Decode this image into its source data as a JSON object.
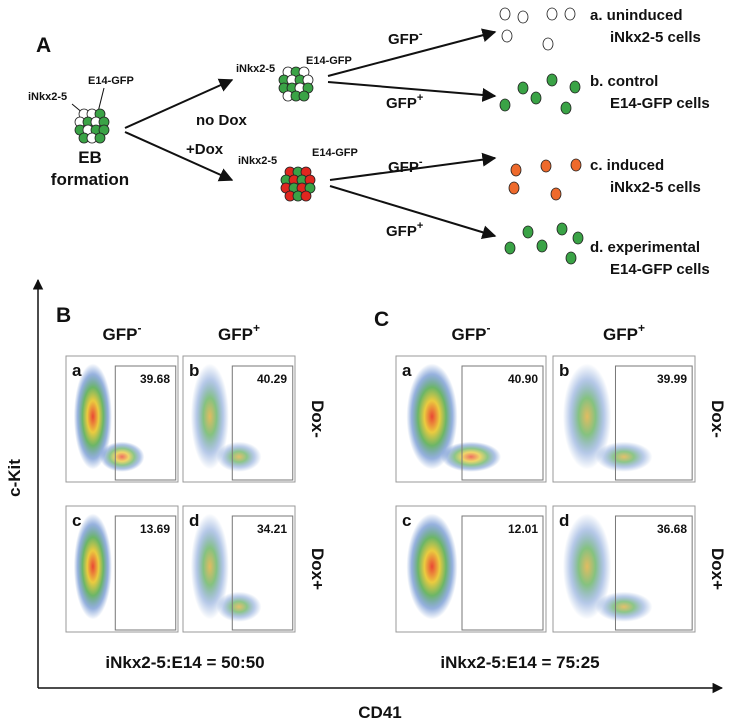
{
  "panel_a": {
    "label": "A",
    "eb": {
      "left_label": "iNkx2-5",
      "right_label": "E14-GFP",
      "caption": [
        "EB",
        "formation"
      ]
    },
    "branches": [
      {
        "condition": "no Dox",
        "left_label": "iNkx2-5",
        "right_label": "E14-GFP",
        "sorts": [
          {
            "gate": "GFP",
            "sign": "-"
          },
          {
            "gate": "GFP",
            "sign": "+"
          }
        ]
      },
      {
        "condition": "+Dox",
        "left_label": "iNkx2-5",
        "right_label": "E14-GFP",
        "sorts": [
          {
            "gate": "GFP",
            "sign": "-"
          },
          {
            "gate": "GFP",
            "sign": "+"
          }
        ]
      }
    ],
    "outcomes": [
      {
        "title": "a. uninduced",
        "subtitle": "iNkx2-5 cells"
      },
      {
        "title": "b. control",
        "subtitle": "E14-GFP cells"
      },
      {
        "title": "c. induced",
        "subtitle": "iNkx2-5 cells"
      },
      {
        "title": "d. experimental",
        "subtitle": "E14-GFP cells"
      }
    ]
  },
  "panels": [
    {
      "label": "B",
      "columns": [
        {
          "text": "GFP",
          "sign": "-"
        },
        {
          "text": "GFP",
          "sign": "+"
        }
      ],
      "rows": [
        "Dox-",
        "Dox+"
      ],
      "plots": [
        {
          "letter": "a",
          "value": "39.68"
        },
        {
          "letter": "b",
          "value": "40.29"
        },
        {
          "letter": "c",
          "value": "13.69"
        },
        {
          "letter": "d",
          "value": "34.21"
        }
      ],
      "caption": "iNkx2-5:E14 = 50:50"
    },
    {
      "label": "C",
      "columns": [
        {
          "text": "GFP",
          "sign": "-"
        },
        {
          "text": "GFP",
          "sign": "+"
        }
      ],
      "rows": [
        "Dox-",
        "Dox+"
      ],
      "plots": [
        {
          "letter": "a",
          "value": "40.90"
        },
        {
          "letter": "b",
          "value": "39.99"
        },
        {
          "letter": "c",
          "value": "12.01"
        },
        {
          "letter": "d",
          "value": "36.68"
        }
      ],
      "caption": "iNkx2-5:E14 = 75:25"
    }
  ],
  "axes": {
    "y": "c-Kit",
    "x": "CD41"
  }
}
